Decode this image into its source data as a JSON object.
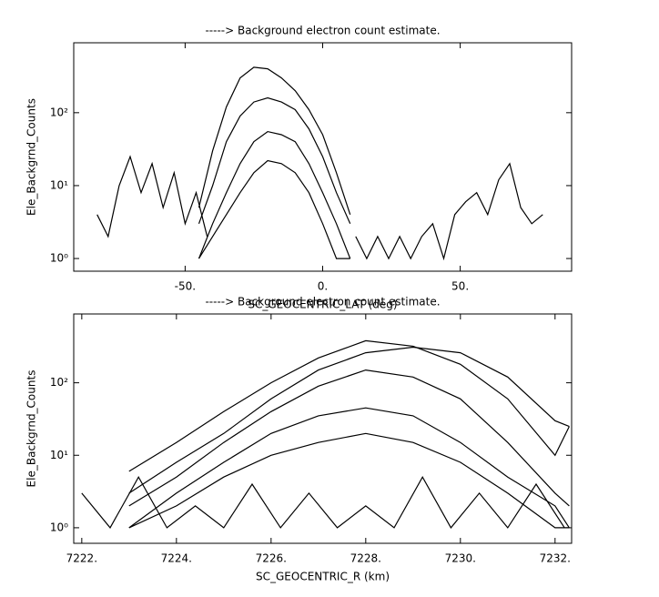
{
  "chart_data": [
    {
      "type": "line",
      "title": "-----> Background electron count estimate.",
      "xlabel": "SC_GEOCENTRIC_LAT (deg)",
      "ylabel": "Ele_Backgrnd_Counts",
      "log_y": true,
      "xlim": [
        -90.5,
        90.5
      ],
      "ylim": [
        0.67,
        910
      ],
      "xticks": [
        {
          "value": -50,
          "label": "-50."
        },
        {
          "value": 0,
          "label": "0."
        },
        {
          "value": 50,
          "label": "50."
        }
      ],
      "yticks": [
        {
          "value": 1,
          "label": "10⁰"
        },
        {
          "value": 10,
          "label": "10¹"
        },
        {
          "value": 100,
          "label": "10²"
        }
      ],
      "series": [
        {
          "color": "#000000",
          "x": [
            -45,
            -40,
            -35,
            -30,
            -25,
            -20,
            -15,
            -10,
            -5,
            0,
            5,
            10
          ],
          "values": [
            5,
            30,
            120,
            300,
            420,
            400,
            300,
            200,
            110,
            50,
            15,
            4
          ]
        },
        {
          "color": "#000000",
          "x": [
            -45,
            -40,
            -35,
            -30,
            -25,
            -20,
            -15,
            -10,
            -5,
            0,
            5,
            10
          ],
          "values": [
            3,
            10,
            40,
            90,
            140,
            160,
            140,
            110,
            60,
            25,
            8,
            3
          ]
        },
        {
          "color": "#000000",
          "x": [
            -45,
            -40,
            -35,
            -30,
            -25,
            -20,
            -15,
            -10,
            -5,
            0,
            5,
            10
          ],
          "values": [
            1,
            3,
            8,
            20,
            40,
            55,
            50,
            40,
            20,
            8,
            3,
            1
          ]
        },
        {
          "color": "#000000",
          "x": [
            -45,
            -40,
            -35,
            -30,
            -25,
            -20,
            -15,
            -10,
            -5,
            0,
            5,
            10
          ],
          "values": [
            1,
            2,
            4,
            8,
            15,
            22,
            20,
            15,
            8,
            3,
            1,
            1
          ]
        },
        {
          "color": "#000000",
          "x": [
            -82,
            -78,
            -74,
            -70,
            -66,
            -62,
            -58,
            -54,
            -50,
            -46,
            -42
          ],
          "values": [
            4,
            2,
            10,
            25,
            8,
            20,
            5,
            15,
            3,
            8,
            2
          ]
        },
        {
          "color": "#000000",
          "x": [
            12,
            16,
            20,
            24,
            28,
            32,
            36,
            40,
            44,
            48,
            52,
            56,
            60,
            64,
            68,
            72,
            76,
            80
          ],
          "values": [
            2,
            1,
            2,
            1,
            2,
            1,
            2,
            3,
            1,
            4,
            6,
            8,
            4,
            12,
            20,
            5,
            3,
            4
          ]
        }
      ]
    },
    {
      "type": "line",
      "title": "-----> Background electron count estimate.",
      "xlabel": "SC_GEOCENTRIC_R (km)",
      "ylabel": "Ele_Backgrnd_Counts",
      "log_y": true,
      "xlim": [
        7221.83,
        7232.35
      ],
      "ylim": [
        0.61,
        890
      ],
      "xticks": [
        {
          "value": 7222,
          "label": "7222."
        },
        {
          "value": 7224,
          "label": "7224."
        },
        {
          "value": 7226,
          "label": "7226."
        },
        {
          "value": 7228,
          "label": "7228."
        },
        {
          "value": 7230,
          "label": "7230."
        },
        {
          "value": 7232,
          "label": "7232."
        }
      ],
      "yticks": [
        {
          "value": 1,
          "label": "10⁰"
        },
        {
          "value": 10,
          "label": "10¹"
        },
        {
          "value": 100,
          "label": "10²"
        }
      ],
      "series": [
        {
          "color": "#000000",
          "x": [
            7223,
            7224,
            7225,
            7226,
            7227,
            7228,
            7229,
            7230,
            7231,
            7232,
            7232.3
          ],
          "values": [
            6,
            15,
            40,
            100,
            220,
            380,
            320,
            180,
            60,
            10,
            25
          ]
        },
        {
          "color": "#000000",
          "x": [
            7223,
            7224,
            7225,
            7226,
            7227,
            7228,
            7229,
            7230,
            7231,
            7232,
            7232.3
          ],
          "values": [
            3,
            8,
            20,
            60,
            150,
            260,
            310,
            260,
            120,
            30,
            25
          ]
        },
        {
          "color": "#000000",
          "x": [
            7223,
            7224,
            7225,
            7226,
            7227,
            7228,
            7229,
            7230,
            7231,
            7232,
            7232.3
          ],
          "values": [
            2,
            5,
            15,
            40,
            90,
            150,
            120,
            60,
            15,
            3,
            2
          ]
        },
        {
          "color": "#000000",
          "x": [
            7223,
            7224,
            7225,
            7226,
            7227,
            7228,
            7229,
            7230,
            7231,
            7232,
            7232.3
          ],
          "values": [
            1,
            3,
            8,
            20,
            35,
            45,
            35,
            15,
            5,
            2,
            1
          ]
        },
        {
          "color": "#000000",
          "x": [
            7223,
            7224,
            7225,
            7226,
            7227,
            7228,
            7229,
            7230,
            7231,
            7232,
            7232.3
          ],
          "values": [
            1,
            2,
            5,
            10,
            15,
            20,
            15,
            8,
            3,
            1,
            1
          ]
        },
        {
          "color": "#000000",
          "x": [
            7222,
            7222.6,
            7223.2,
            7223.8,
            7224.4,
            7225,
            7225.6,
            7226.2,
            7226.8,
            7227.4,
            7228,
            7228.6,
            7229.2,
            7229.8,
            7230.4,
            7231,
            7231.6,
            7232.2
          ],
          "values": [
            3,
            1,
            5,
            1,
            2,
            1,
            4,
            1,
            3,
            1,
            2,
            1,
            5,
            1,
            3,
            1,
            4,
            1
          ]
        }
      ]
    }
  ]
}
